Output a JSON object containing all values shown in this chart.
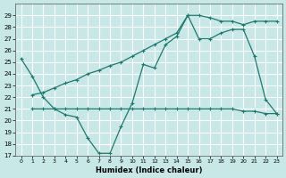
{
  "xlabel": "Humidex (Indice chaleur)",
  "xlim": [
    -0.5,
    23.5
  ],
  "ylim": [
    17,
    30
  ],
  "yticks": [
    17,
    18,
    19,
    20,
    21,
    22,
    23,
    24,
    25,
    26,
    27,
    28,
    29
  ],
  "xticks": [
    0,
    1,
    2,
    3,
    4,
    5,
    6,
    7,
    8,
    9,
    10,
    11,
    12,
    13,
    14,
    15,
    16,
    17,
    18,
    19,
    20,
    21,
    22,
    23
  ],
  "bg_color": "#c8e8e8",
  "grid_color": "#b0d0d0",
  "line_color": "#1a7a6e",
  "line1_x": [
    0,
    1,
    2,
    3,
    4,
    5,
    6,
    7,
    8,
    9,
    10,
    11,
    12,
    13,
    14,
    15,
    16,
    17,
    18,
    19,
    20,
    21,
    22,
    23
  ],
  "line1_y": [
    25.3,
    23.8,
    22.0,
    21.0,
    20.5,
    20.3,
    18.5,
    17.2,
    17.2,
    19.5,
    21.5,
    24.8,
    24.5,
    26.5,
    27.2,
    29.0,
    27.0,
    27.0,
    27.5,
    27.8,
    27.8,
    25.5,
    21.8,
    20.6
  ],
  "line2_x": [
    1,
    2,
    3,
    4,
    5,
    6,
    7,
    8,
    9,
    10,
    11,
    12,
    13,
    14,
    15,
    16,
    17,
    18,
    19,
    20,
    21,
    22,
    23
  ],
  "line2_y": [
    22.2,
    22.4,
    22.8,
    23.2,
    23.5,
    24.0,
    24.3,
    24.7,
    25.0,
    25.5,
    26.0,
    26.5,
    27.0,
    27.5,
    29.0,
    29.0,
    28.8,
    28.5,
    28.5,
    28.2,
    28.5,
    28.5,
    28.5
  ],
  "line3_x": [
    1,
    2,
    3,
    4,
    5,
    6,
    7,
    8,
    9,
    10,
    11,
    12,
    13,
    14,
    15,
    16,
    17,
    18,
    19,
    20,
    21,
    22,
    23
  ],
  "line3_y": [
    21.0,
    21.0,
    21.0,
    21.0,
    21.0,
    21.0,
    21.0,
    21.0,
    21.0,
    21.0,
    21.0,
    21.0,
    21.0,
    21.0,
    21.0,
    21.0,
    21.0,
    21.0,
    21.0,
    20.8,
    20.8,
    20.6,
    20.6
  ]
}
